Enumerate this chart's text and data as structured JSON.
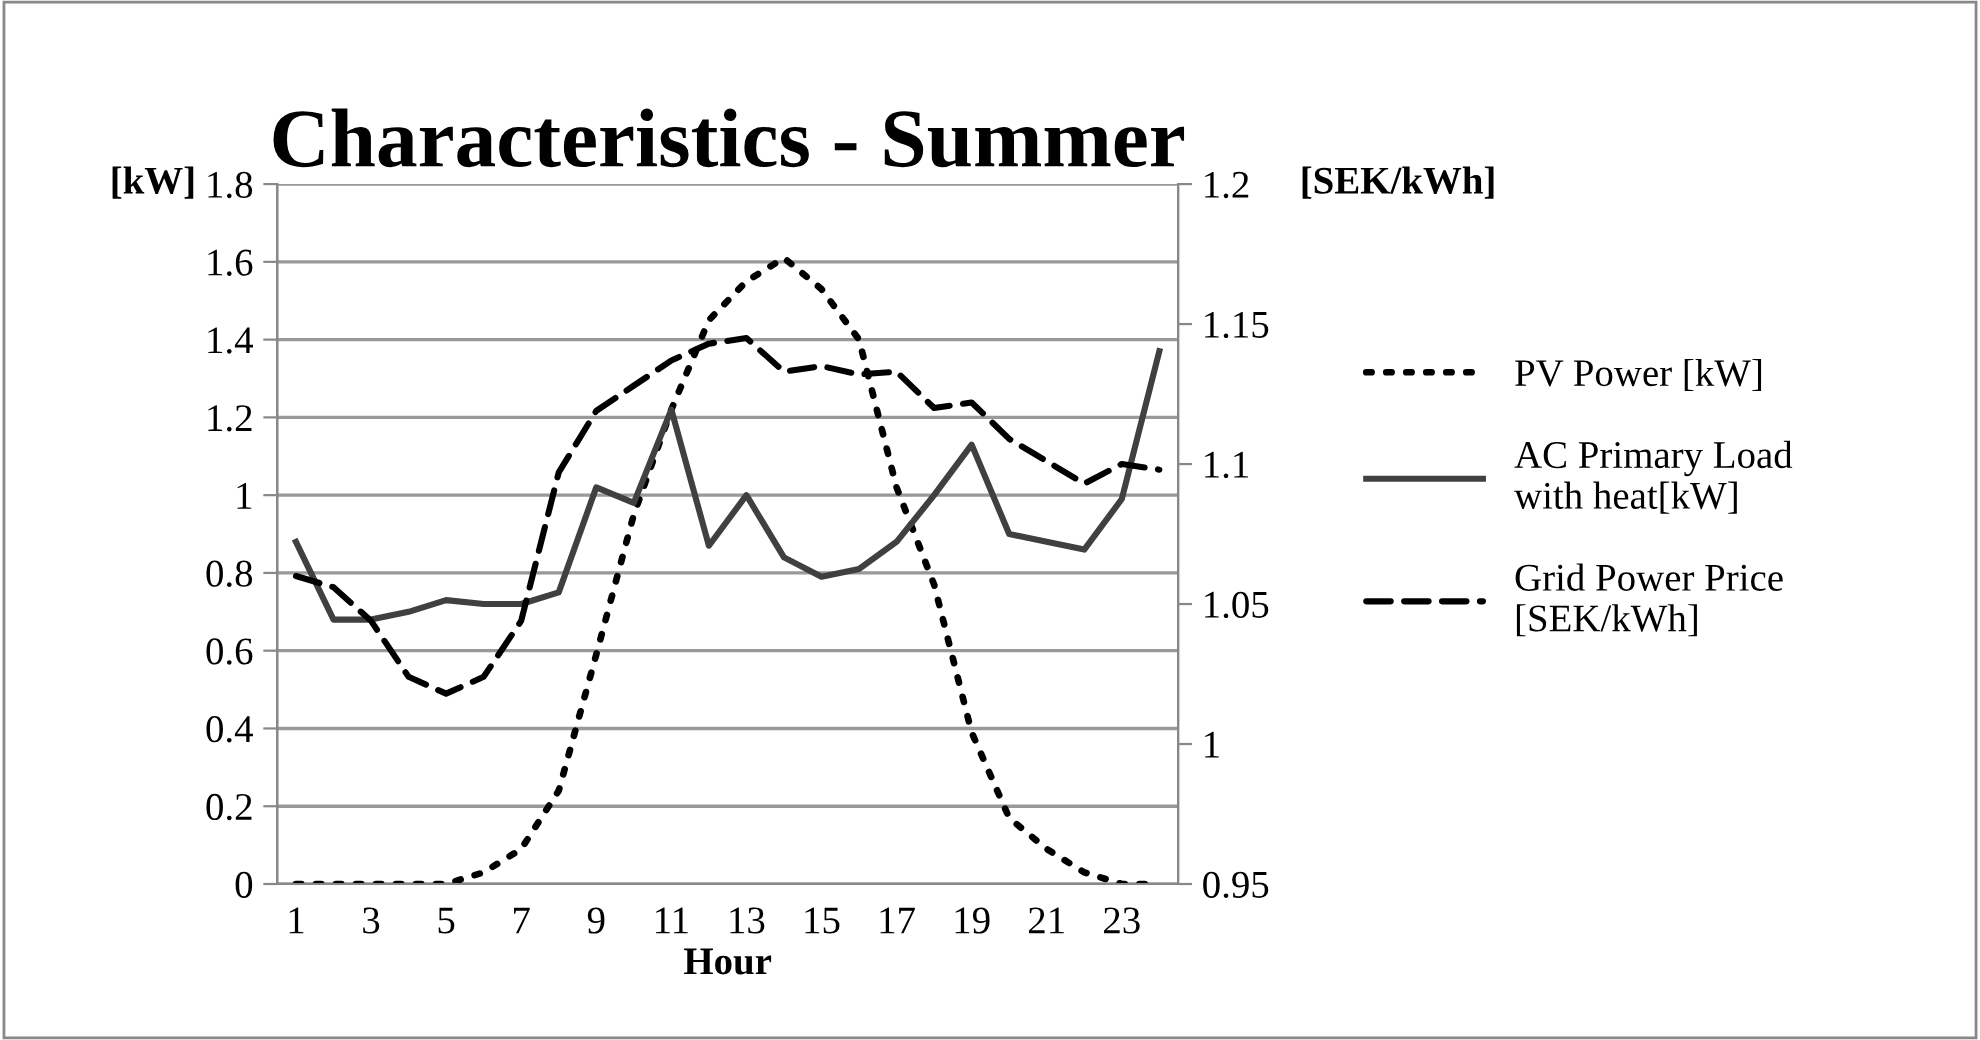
{
  "chart_data": {
    "type": "line",
    "title": "Characteristics - Summer",
    "xlabel": "Hour",
    "ylabel": "[kW]",
    "y2label": "[SEK/kWh]",
    "categories": [
      "1",
      null,
      "3",
      null,
      "5",
      null,
      "7",
      null,
      "9",
      null,
      "11",
      null,
      "13",
      null,
      "15",
      null,
      "17",
      null,
      "19",
      null,
      "21",
      null,
      "23",
      null
    ],
    "series": [
      {
        "name": "PV Power [kW]",
        "color": "#000000",
        "line_style": "dotted",
        "values": [
          0,
          0,
          0,
          0,
          0,
          0.03,
          0.09,
          0.24,
          0.59,
          0.95,
          1.22,
          1.45,
          1.55,
          1.61,
          1.53,
          1.4,
          1.02,
          0.77,
          0.39,
          0.17,
          0.09,
          0.03,
          0,
          0
        ]
      },
      {
        "name": "AC Primary Load with heat[kW]",
        "color": "#404040",
        "line_style": "solid",
        "values": [
          0.88,
          0.68,
          0.68,
          0.7,
          0.73,
          0.72,
          0.72,
          0.75,
          1.02,
          0.98,
          1.22,
          0.87,
          1.0,
          0.84,
          0.79,
          0.81,
          0.88,
          1.0,
          1.13,
          0.9,
          0.88,
          0.86,
          0.99,
          1.37
        ]
      },
      {
        "name": "Grid Power Price [SEK/kWh]",
        "color": "#000000",
        "line_style": "dashed",
        "axis": "y2",
        "values": [
          1.06,
          1.056,
          1.044,
          1.024,
          1.018,
          1.024,
          1.044,
          1.097,
          1.119,
          1.128,
          1.137,
          1.143,
          1.145,
          1.133,
          1.135,
          1.132,
          1.133,
          1.12,
          1.122,
          1.109,
          1.101,
          1.093,
          1.1,
          1.098
        ]
      }
    ],
    "ylim": [
      0,
      1.8
    ],
    "yticks": [
      0,
      0.2,
      0.4,
      0.6,
      0.8,
      1,
      1.2,
      1.4,
      1.6,
      1.8
    ],
    "y2lim": [
      0.95,
      1.2
    ],
    "y2ticks": [
      0.95,
      1,
      1.05,
      1.1,
      1.15,
      1.2
    ],
    "grid": "y",
    "legend": "right",
    "marker": "none"
  }
}
